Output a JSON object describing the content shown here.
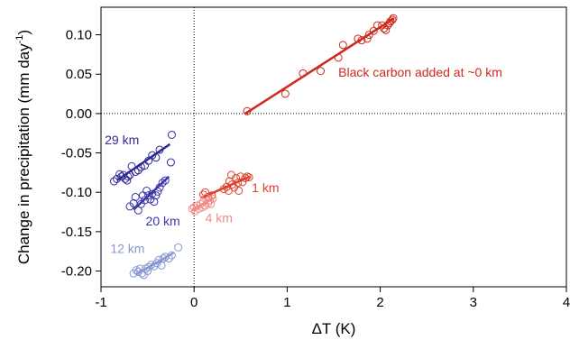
{
  "chart_data": {
    "type": "scatter",
    "xlabel": "ΔT (K)",
    "ylabel": "Change in precipitation (mm day",
    "ylabel_sup": "-1",
    "ylabel_close": ")",
    "xlim": [
      -1,
      4
    ],
    "ylim": [
      -0.22,
      0.135
    ],
    "x_ticks": [
      -1,
      0,
      1,
      2,
      3,
      4
    ],
    "x_tick_labels": [
      "-1",
      "0",
      "1",
      "2",
      "3",
      "4"
    ],
    "y_ticks": [
      0.1,
      0.05,
      0.0,
      -0.05,
      -0.1,
      -0.15,
      -0.2
    ],
    "y_tick_labels": [
      "0.10",
      "0.05",
      "0.00",
      "-0.05",
      "-0.10",
      "-0.15",
      "-0.20"
    ],
    "reference_lines": {
      "x": 0,
      "y": 0,
      "style": "dotted"
    },
    "grid": false,
    "series": [
      {
        "name": "Black carbon added at ~0 km",
        "color": "#cc2a1e",
        "points": [
          [
            0.57,
            0.003
          ],
          [
            0.98,
            0.025
          ],
          [
            1.17,
            0.051
          ],
          [
            1.36,
            0.054
          ],
          [
            1.55,
            0.071
          ],
          [
            1.6,
            0.087
          ],
          [
            1.76,
            0.095
          ],
          [
            1.8,
            0.093
          ],
          [
            1.86,
            0.095
          ],
          [
            1.88,
            0.1
          ],
          [
            1.93,
            0.105
          ],
          [
            1.97,
            0.112
          ],
          [
            2.02,
            0.112
          ],
          [
            2.04,
            0.108
          ],
          [
            2.06,
            0.106
          ],
          [
            2.08,
            0.112
          ],
          [
            2.1,
            0.115
          ],
          [
            2.11,
            0.117
          ],
          [
            2.13,
            0.119
          ],
          [
            2.14,
            0.121
          ]
        ],
        "fit": [
          [
            0.55,
            0.0
          ],
          [
            2.15,
            0.121
          ]
        ]
      },
      {
        "name": "1 km",
        "color": "#e0412f",
        "points": [
          [
            0.1,
            -0.103
          ],
          [
            0.12,
            -0.1
          ],
          [
            0.15,
            -0.106
          ],
          [
            0.19,
            -0.104
          ],
          [
            0.32,
            -0.096
          ],
          [
            0.35,
            -0.093
          ],
          [
            0.37,
            -0.098
          ],
          [
            0.38,
            -0.086
          ],
          [
            0.4,
            -0.078
          ],
          [
            0.41,
            -0.09
          ],
          [
            0.43,
            -0.094
          ],
          [
            0.45,
            -0.082
          ],
          [
            0.47,
            -0.088
          ],
          [
            0.48,
            -0.098
          ],
          [
            0.5,
            -0.08
          ],
          [
            0.52,
            -0.087
          ],
          [
            0.55,
            -0.082
          ],
          [
            0.57,
            -0.08
          ],
          [
            0.59,
            -0.081
          ]
        ],
        "fit": [
          [
            0.08,
            -0.107
          ],
          [
            0.6,
            -0.08
          ]
        ]
      },
      {
        "name": "4 km",
        "color": "#f08c84",
        "points": [
          [
            -0.02,
            -0.121
          ],
          [
            0.0,
            -0.119
          ],
          [
            0.01,
            -0.124
          ],
          [
            0.03,
            -0.117
          ],
          [
            0.05,
            -0.121
          ],
          [
            0.07,
            -0.115
          ],
          [
            0.09,
            -0.119
          ],
          [
            0.1,
            -0.112
          ],
          [
            0.12,
            -0.117
          ],
          [
            0.13,
            -0.107
          ],
          [
            0.15,
            -0.114
          ],
          [
            0.17,
            -0.11
          ],
          [
            0.18,
            -0.115
          ],
          [
            0.2,
            -0.108
          ]
        ],
        "fit": [
          [
            -0.02,
            -0.123
          ],
          [
            0.2,
            -0.108
          ]
        ]
      },
      {
        "name": "29 km",
        "color": "#2e2a96",
        "points": [
          [
            -0.86,
            -0.086
          ],
          [
            -0.83,
            -0.083
          ],
          [
            -0.8,
            -0.077
          ],
          [
            -0.78,
            -0.08
          ],
          [
            -0.76,
            -0.078
          ],
          [
            -0.74,
            -0.083
          ],
          [
            -0.72,
            -0.085
          ],
          [
            -0.71,
            -0.08
          ],
          [
            -0.69,
            -0.078
          ],
          [
            -0.67,
            -0.067
          ],
          [
            -0.63,
            -0.074
          ],
          [
            -0.6,
            -0.072
          ],
          [
            -0.57,
            -0.068
          ],
          [
            -0.53,
            -0.066
          ],
          [
            -0.49,
            -0.06
          ],
          [
            -0.45,
            -0.053
          ],
          [
            -0.41,
            -0.056
          ],
          [
            -0.37,
            -0.046
          ],
          [
            -0.25,
            -0.062
          ],
          [
            -0.24,
            -0.027
          ]
        ],
        "fit": [
          [
            -0.83,
            -0.085
          ],
          [
            -0.26,
            -0.039
          ]
        ]
      },
      {
        "name": "20 km",
        "color": "#3a35a8",
        "points": [
          [
            -0.69,
            -0.118
          ],
          [
            -0.65,
            -0.114
          ],
          [
            -0.63,
            -0.106
          ],
          [
            -0.6,
            -0.123
          ],
          [
            -0.57,
            -0.115
          ],
          [
            -0.55,
            -0.104
          ],
          [
            -0.53,
            -0.11
          ],
          [
            -0.51,
            -0.098
          ],
          [
            -0.49,
            -0.104
          ],
          [
            -0.47,
            -0.109
          ],
          [
            -0.45,
            -0.102
          ],
          [
            -0.43,
            -0.112
          ],
          [
            -0.41,
            -0.104
          ],
          [
            -0.39,
            -0.099
          ],
          [
            -0.37,
            -0.094
          ],
          [
            -0.34,
            -0.088
          ],
          [
            -0.31,
            -0.085
          ]
        ],
        "fit": [
          [
            -0.65,
            -0.122
          ],
          [
            -0.27,
            -0.08
          ]
        ]
      },
      {
        "name": "12 km",
        "color": "#8a96d2",
        "points": [
          [
            -0.65,
            -0.203
          ],
          [
            -0.62,
            -0.199
          ],
          [
            -0.6,
            -0.201
          ],
          [
            -0.58,
            -0.197
          ],
          [
            -0.56,
            -0.203
          ],
          [
            -0.54,
            -0.205
          ],
          [
            -0.52,
            -0.197
          ],
          [
            -0.5,
            -0.2
          ],
          [
            -0.49,
            -0.195
          ],
          [
            -0.46,
            -0.192
          ],
          [
            -0.43,
            -0.194
          ],
          [
            -0.4,
            -0.19
          ],
          [
            -0.38,
            -0.186
          ],
          [
            -0.35,
            -0.193
          ],
          [
            -0.33,
            -0.184
          ],
          [
            -0.31,
            -0.182
          ],
          [
            -0.27,
            -0.184
          ],
          [
            -0.24,
            -0.18
          ],
          [
            -0.17,
            -0.17
          ]
        ],
        "fit": [
          [
            -0.62,
            -0.204
          ],
          [
            -0.22,
            -0.177
          ]
        ]
      }
    ],
    "labels": [
      {
        "text": "Black carbon added at ~0 km",
        "series": 0,
        "at": [
          1.55,
          0.047
        ]
      },
      {
        "text": "1 km",
        "series": 1,
        "at": [
          0.62,
          -0.1
        ]
      },
      {
        "text": "4 km",
        "series": 2,
        "at": [
          0.12,
          -0.138
        ]
      },
      {
        "text": "29 km",
        "series": 3,
        "at": [
          -0.96,
          -0.039
        ]
      },
      {
        "text": "20 km",
        "series": 4,
        "at": [
          -0.52,
          -0.142
        ]
      },
      {
        "text": "12 km",
        "series": 5,
        "at": [
          -0.9,
          -0.177
        ]
      }
    ]
  }
}
